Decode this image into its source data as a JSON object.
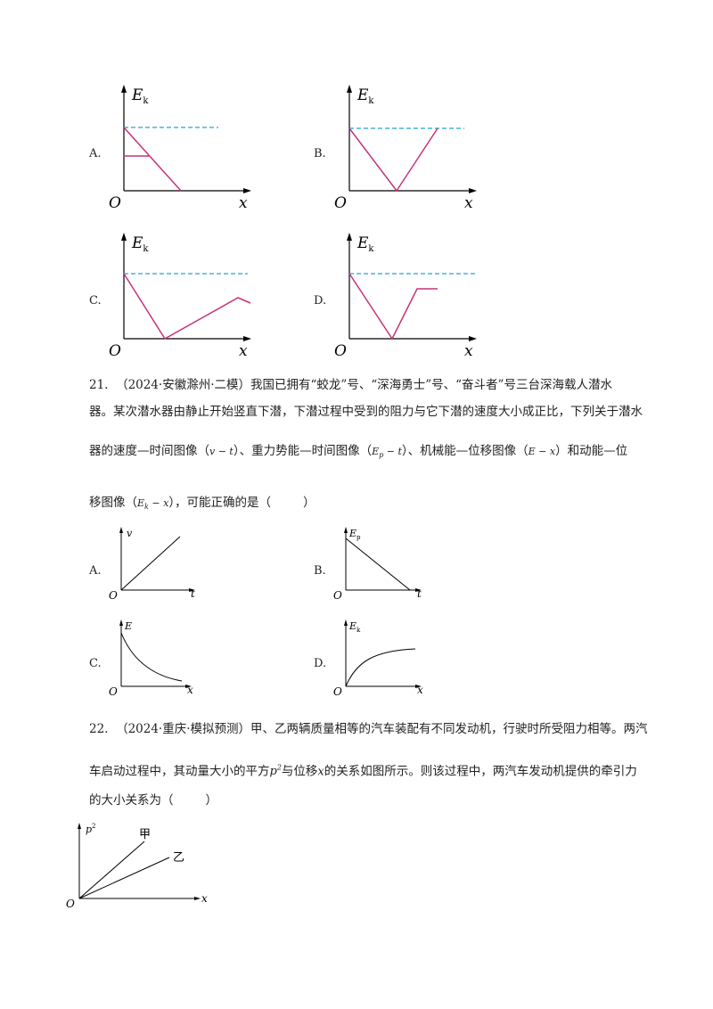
{
  "colors": {
    "curve": "#c6337a",
    "dash": "#1fa3d6",
    "axis": "#000000"
  },
  "graphs_q20": {
    "opt_a": "A.",
    "opt_b": "B.",
    "opt_c": "C.",
    "opt_d": "D.",
    "ylabel": "E",
    "ysub": "k",
    "xlabel": "x",
    "origin": "O"
  },
  "q21": {
    "num": "21.",
    "source": "（2024·安徽滁州·二模）",
    "line1": "我国已拥有“蛟龙”号、“深海勇士”号、“奋斗者”号三台深海载人潜水",
    "line2": "器。某次潜水器由静止开始竖直下潜，下潜过程中受到的阻力与它下潜的速度大小成正比，下列关于潜水",
    "line3_a": "器的速度—时间图像（",
    "line3_vt": "v − t",
    "line3_b": "）、重力势能—时间图像（",
    "line3_ep": "E",
    "line3_ep_sub": "p",
    "line3_ept": " − t",
    "line3_c": "）、机械能—位移图像（",
    "line3_ex": "E − x",
    "line3_d": "）和动能—位",
    "line4_a": "移图像（",
    "line4_ek": "E",
    "line4_ek_sub": "k",
    "line4_ekx": " − x",
    "line4_b": "），可能正确的是（",
    "line4_c": "）",
    "opt_a": "A.",
    "opt_b": "B.",
    "opt_c": "C.",
    "opt_d": "D.",
    "graph_a": {
      "ylabel": "v",
      "xlabel": "t",
      "origin": "O"
    },
    "graph_b": {
      "ylabel": "E",
      "ysub": "p",
      "xlabel": "t",
      "origin": "O"
    },
    "graph_c": {
      "ylabel": "E",
      "xlabel": "x",
      "origin": "O"
    },
    "graph_d": {
      "ylabel": "E",
      "ysub": "k",
      "xlabel": "x",
      "origin": "O"
    }
  },
  "q22": {
    "num": "22.",
    "source": "（2024·重庆·模拟预测）",
    "line1": "甲、乙两辆质量相等的汽车装配有不同发动机，行驶时所受阻力相等。两汽",
    "line2_a": "车启动过程中，其动量大小的平方",
    "line2_p": "p",
    "line2_p_sup": "2",
    "line2_b": "与位移",
    "line2_x": "x",
    "line2_c": "的关系如图所示。则该过程中，两汽车发动机提供的牵引力",
    "line3_a": "的大小关系为（",
    "line3_b": "）",
    "graph": {
      "ylabel": "p",
      "ysup": "2",
      "xlabel": "x",
      "origin": "O",
      "label_jia": "甲",
      "label_yi": "乙"
    }
  }
}
